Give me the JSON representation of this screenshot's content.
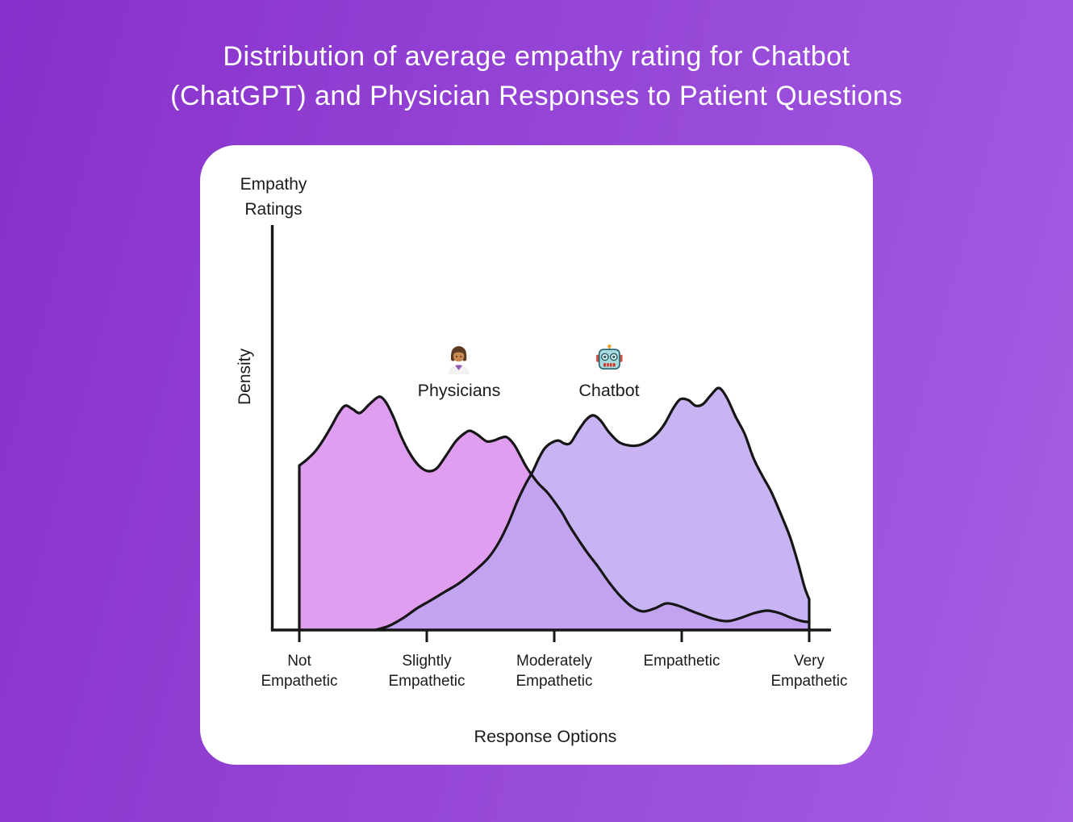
{
  "page": {
    "title_line1": "Distribution of average empathy rating for Chatbot",
    "title_line2": "(ChatGPT) and Physician Responses to Patient Questions"
  },
  "theme": {
    "background_gradient_from": "#8730CB",
    "background_gradient_to": "#A55EE3",
    "card_background": "#FFFFFF",
    "title_text": "#FFFFFF",
    "chart_text": "#1B1B1B",
    "axis_stroke": "#161616"
  },
  "chart_data": {
    "type": "area",
    "title": "Distribution of average empathy rating for Chatbot (ChatGPT) and Physician Responses to Patient Questions",
    "y_axis_title_line1": "Empathy",
    "y_axis_title_line2": "Ratings",
    "ylabel": "Density",
    "xlabel": "Response Options",
    "categories": [
      "Not Empathetic",
      "Slightly Empathetic",
      "Moderately Empathetic",
      "Empathetic",
      "Very Empathetic"
    ],
    "x_range": [
      1,
      5
    ],
    "ylim": [
      0,
      1
    ],
    "grid": false,
    "legend_position": "top-center-inside",
    "series": [
      {
        "name": "Physicians",
        "icon": "woman-health-worker-emoji",
        "icon_char": "👩🏽‍⚕️",
        "fill": "#DF9EF0",
        "stroke": "#161616",
        "points": [
          [
            1.0,
            0.68
          ],
          [
            1.057,
            0.703
          ],
          [
            1.127,
            0.74
          ],
          [
            1.19,
            0.787
          ],
          [
            1.253,
            0.843
          ],
          [
            1.31,
            0.897
          ],
          [
            1.361,
            0.927
          ],
          [
            1.418,
            0.913
          ],
          [
            1.475,
            0.897
          ],
          [
            1.544,
            0.93
          ],
          [
            1.601,
            0.957
          ],
          [
            1.639,
            0.963
          ],
          [
            1.684,
            0.937
          ],
          [
            1.741,
            0.877
          ],
          [
            1.797,
            0.803
          ],
          [
            1.867,
            0.73
          ],
          [
            1.937,
            0.68
          ],
          [
            2.006,
            0.657
          ],
          [
            2.076,
            0.667
          ],
          [
            2.146,
            0.717
          ],
          [
            2.228,
            0.78
          ],
          [
            2.297,
            0.813
          ],
          [
            2.342,
            0.823
          ],
          [
            2.399,
            0.807
          ],
          [
            2.468,
            0.78
          ],
          [
            2.525,
            0.783
          ],
          [
            2.576,
            0.793
          ],
          [
            2.627,
            0.797
          ],
          [
            2.684,
            0.767
          ],
          [
            2.734,
            0.72
          ],
          [
            2.778,
            0.677
          ],
          [
            2.829,
            0.637
          ],
          [
            2.88,
            0.603
          ],
          [
            2.943,
            0.57
          ],
          [
            3.006,
            0.527
          ],
          [
            3.063,
            0.483
          ],
          [
            3.12,
            0.43
          ],
          [
            3.19,
            0.373
          ],
          [
            3.259,
            0.32
          ],
          [
            3.342,
            0.263
          ],
          [
            3.43,
            0.197
          ],
          [
            3.519,
            0.14
          ],
          [
            3.608,
            0.097
          ],
          [
            3.696,
            0.077
          ],
          [
            3.791,
            0.09
          ],
          [
            3.88,
            0.11
          ],
          [
            3.975,
            0.1
          ],
          [
            4.07,
            0.08
          ],
          [
            4.171,
            0.06
          ],
          [
            4.272,
            0.043
          ],
          [
            4.367,
            0.037
          ],
          [
            4.462,
            0.05
          ],
          [
            4.57,
            0.07
          ],
          [
            4.671,
            0.08
          ],
          [
            4.766,
            0.07
          ],
          [
            4.861,
            0.05
          ],
          [
            4.943,
            0.037
          ],
          [
            5.0,
            0.033
          ]
        ]
      },
      {
        "name": "Chatbot",
        "icon": "robot-emoji",
        "icon_char": "🤖",
        "fill": "rgba(188,163,239,0.82)",
        "stroke": "#161616",
        "points": [
          [
            1.595,
            0.0
          ],
          [
            1.703,
            0.017
          ],
          [
            1.816,
            0.05
          ],
          [
            1.924,
            0.09
          ],
          [
            2.032,
            0.123
          ],
          [
            2.139,
            0.157
          ],
          [
            2.253,
            0.193
          ],
          [
            2.373,
            0.243
          ],
          [
            2.481,
            0.297
          ],
          [
            2.563,
            0.36
          ],
          [
            2.639,
            0.44
          ],
          [
            2.709,
            0.53
          ],
          [
            2.772,
            0.6
          ],
          [
            2.829,
            0.653
          ],
          [
            2.88,
            0.71
          ],
          [
            2.924,
            0.75
          ],
          [
            2.975,
            0.773
          ],
          [
            3.032,
            0.783
          ],
          [
            3.082,
            0.77
          ],
          [
            3.127,
            0.773
          ],
          [
            3.184,
            0.82
          ],
          [
            3.247,
            0.867
          ],
          [
            3.304,
            0.887
          ],
          [
            3.361,
            0.867
          ],
          [
            3.43,
            0.817
          ],
          [
            3.506,
            0.777
          ],
          [
            3.582,
            0.763
          ],
          [
            3.658,
            0.763
          ],
          [
            3.734,
            0.78
          ],
          [
            3.804,
            0.81
          ],
          [
            3.867,
            0.853
          ],
          [
            3.93,
            0.913
          ],
          [
            3.987,
            0.953
          ],
          [
            4.051,
            0.95
          ],
          [
            4.108,
            0.927
          ],
          [
            4.165,
            0.933
          ],
          [
            4.228,
            0.97
          ],
          [
            4.291,
            1.0
          ],
          [
            4.354,
            0.96
          ],
          [
            4.424,
            0.88
          ],
          [
            4.494,
            0.81
          ],
          [
            4.563,
            0.71
          ],
          [
            4.633,
            0.637
          ],
          [
            4.703,
            0.57
          ],
          [
            4.779,
            0.477
          ],
          [
            4.848,
            0.387
          ],
          [
            4.911,
            0.28
          ],
          [
            4.962,
            0.18
          ],
          [
            5.0,
            0.127
          ]
        ]
      }
    ]
  }
}
